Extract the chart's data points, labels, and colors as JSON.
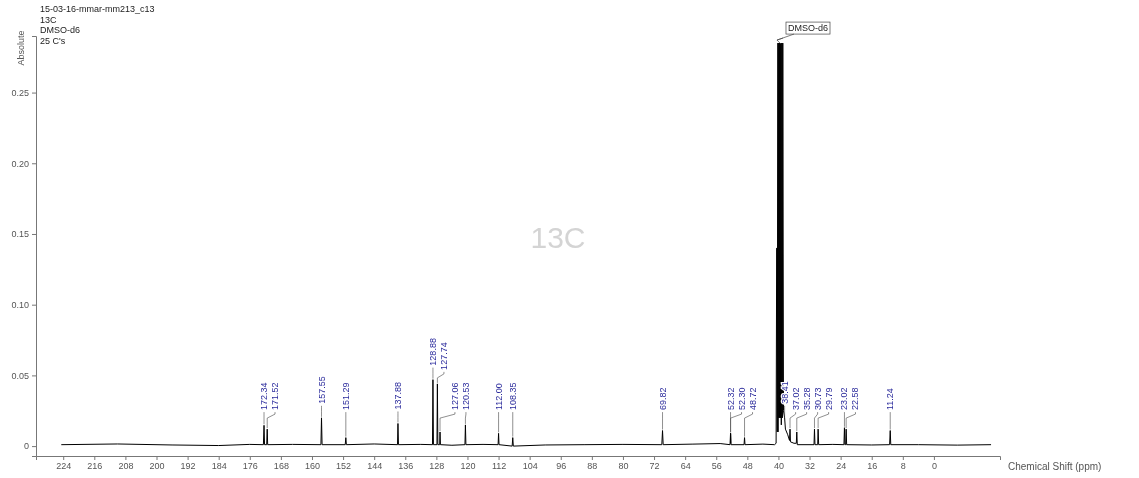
{
  "chart_data": {
    "type": "line",
    "title": "15-03-16-mmar-mm213_c13",
    "subtitle": "13C",
    "ylabel": "Absolute",
    "xlabel": "Chemical Shift (ppm)",
    "xlim": [
      231,
      -17
    ],
    "ylim": [
      -0.007,
      0.29
    ],
    "xticks": [
      224,
      216,
      208,
      200,
      192,
      184,
      176,
      168,
      160,
      152,
      144,
      136,
      128,
      120,
      112,
      104,
      96,
      88,
      80,
      72,
      64,
      56,
      48,
      40,
      32,
      24,
      16,
      8,
      0
    ],
    "yticks": [
      0,
      {
        "value": 0.05,
        "label": "0.05"
      },
      {
        "value": 0.1,
        "label": "0.10"
      },
      {
        "value": 0.15,
        "label": "0.15"
      },
      {
        "value": 0.2,
        "label": "0.20"
      },
      {
        "value": 0.25,
        "label": "0.25"
      }
    ],
    "grid": false,
    "series": [
      {
        "color": "#000000",
        "x": [
          224.5,
          210,
          196,
          184,
          176,
          172.5,
          172.34,
          172.2,
          171.65,
          171.52,
          171.4,
          165,
          157.7,
          157.55,
          157.4,
          151.45,
          151.29,
          151.15,
          144,
          138.0,
          137.88,
          137.75,
          132,
          129.0,
          128.88,
          128.75,
          127.85,
          127.74,
          127.62,
          127.15,
          127.06,
          126.95,
          124,
          120.65,
          120.53,
          120.4,
          116,
          112.12,
          112.0,
          111.88,
          108.5,
          108.35,
          108.2,
          100,
          90,
          80,
          70.0,
          69.82,
          69.65,
          62,
          55,
          52.45,
          52.32,
          52.31,
          52.3,
          52.18,
          48.85,
          48.72,
          48.6,
          44,
          41.0,
          40.6,
          40.45,
          40.4,
          40.3,
          40.14,
          40.1,
          39.93,
          39.9,
          39.72,
          39.68,
          39.51,
          39.47,
          39.3,
          39.26,
          39.09,
          39.0,
          38.88,
          38.7,
          38.41,
          38.2,
          37.6,
          37.15,
          37.02,
          36.9,
          36.0,
          35.4,
          35.28,
          35.15,
          30.85,
          30.73,
          30.6,
          29.9,
          29.79,
          29.65,
          26,
          23.15,
          23.02,
          22.9,
          22.7,
          22.58,
          22.45,
          16,
          11.4,
          11.24,
          11.1,
          4,
          -6,
          -14.7
        ],
        "values": [
          0.001,
          0.0015,
          0.0008,
          0.0004,
          0.0012,
          0.001,
          0.0147,
          0.001,
          0.001,
          0.012,
          0.001,
          0.0012,
          0.001,
          0.02,
          0.001,
          0.001,
          0.006,
          0.001,
          0.0015,
          0.001,
          0.016,
          0.001,
          0.0012,
          0.001,
          0.047,
          0.001,
          0.001,
          0.044,
          0.001,
          0.001,
          0.01,
          0.001,
          0.0006,
          0.001,
          0.015,
          0.001,
          0.0012,
          0.001,
          0.009,
          0.001,
          0.0,
          0.006,
          0.0,
          0.0008,
          0.001,
          0.0012,
          0.001,
          0.011,
          0.001,
          0.0014,
          0.0018,
          0.001,
          0.009,
          0.002,
          0.009,
          0.001,
          0.001,
          0.006,
          0.001,
          0.0014,
          0.001,
          0.002,
          0.14,
          0.14,
          0.01,
          0.285,
          0.01,
          0.285,
          0.02,
          0.285,
          0.02,
          0.285,
          0.02,
          0.285,
          0.015,
          0.285,
          0.02,
          0.285,
          0.025,
          0.02,
          0.012,
          0.008,
          0.004,
          0.012,
          0.003,
          0.002,
          0.002,
          0.01,
          0.001,
          0.001,
          0.012,
          0.001,
          0.001,
          0.012,
          0.001,
          0.0012,
          0.001,
          0.013,
          0.001,
          0.001,
          0.012,
          0.001,
          0.0008,
          0.001,
          0.011,
          0.001,
          0.001,
          0.0007,
          0.001
        ]
      }
    ],
    "annotations": [
      "13C",
      "DMSO-d6",
      "25 C's",
      {
        "text": "DMSO-d6",
        "x": 39.6,
        "y": 0.285
      },
      {
        "text": "172.34",
        "x": 172.34,
        "y": 0.0147
      },
      {
        "text": "171.52",
        "x": 171.52,
        "y": 0.012
      },
      {
        "text": "157.55",
        "x": 157.55,
        "y": 0.02
      },
      {
        "text": "151.29",
        "x": 151.29,
        "y": 0.006
      },
      {
        "text": "137.88",
        "x": 137.88,
        "y": 0.016
      },
      {
        "text": "128.88",
        "x": 128.88,
        "y": 0.047
      },
      {
        "text": "127.74",
        "x": 127.74,
        "y": 0.044
      },
      {
        "text": "127.06",
        "x": 127.06,
        "y": 0.01
      },
      {
        "text": "120.53",
        "x": 120.53,
        "y": 0.015
      },
      {
        "text": "112.00",
        "x": 112.0,
        "y": 0.009
      },
      {
        "text": "108.35",
        "x": 108.35,
        "y": 0.006
      },
      {
        "text": "69.82",
        "x": 69.82,
        "y": 0.011
      },
      {
        "text": "52.32",
        "x": 52.32,
        "y": 0.009
      },
      {
        "text": "52.30",
        "x": 52.3,
        "y": 0.009
      },
      {
        "text": "48.72",
        "x": 48.72,
        "y": 0.006
      },
      {
        "text": "38.41",
        "x": 38.41,
        "y": 0.02
      },
      {
        "text": "37.02",
        "x": 37.02,
        "y": 0.012
      },
      {
        "text": "35.28",
        "x": 35.28,
        "y": 0.01
      },
      {
        "text": "30.73",
        "x": 30.73,
        "y": 0.012
      },
      {
        "text": "29.79",
        "x": 29.79,
        "y": 0.012
      },
      {
        "text": "23.02",
        "x": 23.02,
        "y": 0.013
      },
      {
        "text": "22.58",
        "x": 22.58,
        "y": 0.012
      },
      {
        "text": "11.24",
        "x": 11.24,
        "y": 0.011
      }
    ]
  }
}
